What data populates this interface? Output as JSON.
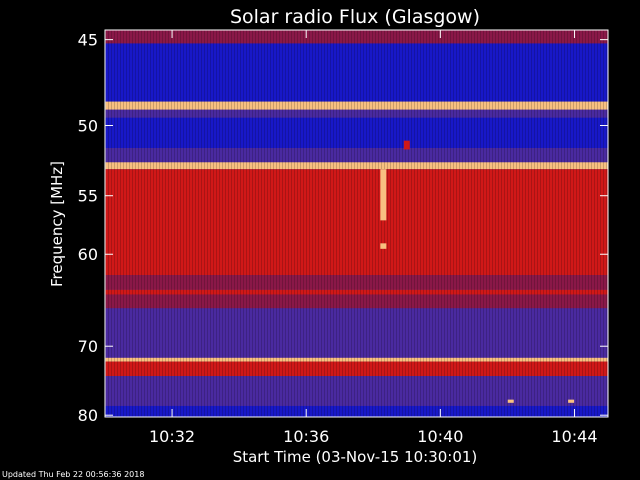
{
  "chart_data": {
    "type": "heatmap",
    "title": "Solar radio Flux (Glasgow)",
    "xlabel": "Start Time (03-Nov-15 10:30:01)",
    "ylabel": "Frequency [MHz]",
    "x_ticks": [
      "10:32",
      "10:36",
      "10:40",
      "10:44"
    ],
    "x_tick_minutes": [
      2,
      6,
      10,
      14
    ],
    "xlim_minutes": [
      0,
      15
    ],
    "y_ticks": [
      45,
      50,
      55,
      60,
      70,
      80
    ],
    "ylim": [
      44.5,
      80.3
    ],
    "y_scale": "reciprocal",
    "colors": {
      "background": "#000000",
      "axes": "#ffffff",
      "text": "#ffffff",
      "low": "#1818c8",
      "mid_low": "#4a2aa0",
      "mid": "#8a1848",
      "high": "#d01818",
      "peak": "#f8c080"
    },
    "bands": [
      {
        "from": 44.5,
        "to": 45.2,
        "level": "mid",
        "label": "top edge"
      },
      {
        "from": 45.2,
        "to": 48.5,
        "level": "low"
      },
      {
        "from": 48.5,
        "to": 49.0,
        "level": "peak"
      },
      {
        "from": 49.0,
        "to": 49.5,
        "level": "mid_low"
      },
      {
        "from": 49.5,
        "to": 51.5,
        "level": "low"
      },
      {
        "from": 51.5,
        "to": 52.5,
        "level": "mid_low"
      },
      {
        "from": 52.5,
        "to": 53.0,
        "level": "peak"
      },
      {
        "from": 53.0,
        "to": 62.0,
        "level": "high"
      },
      {
        "from": 62.0,
        "to": 63.5,
        "level": "mid"
      },
      {
        "from": 63.5,
        "to": 64.0,
        "level": "high"
      },
      {
        "from": 64.0,
        "to": 65.5,
        "level": "mid"
      },
      {
        "from": 65.5,
        "to": 71.5,
        "level": "mid_low"
      },
      {
        "from": 71.5,
        "to": 72.0,
        "level": "peak"
      },
      {
        "from": 72.0,
        "to": 74.0,
        "level": "high"
      },
      {
        "from": 74.0,
        "to": 78.5,
        "level": "mid_low"
      },
      {
        "from": 78.5,
        "to": 80.3,
        "level": "low"
      }
    ],
    "features": [
      {
        "t": 8.3,
        "f_from": 53.0,
        "f_to": 57.0,
        "level": "peak"
      },
      {
        "t": 8.3,
        "f_from": 59.0,
        "f_to": 59.5,
        "level": "peak"
      },
      {
        "t": 12.1,
        "f_from": 77.5,
        "f_to": 78.0,
        "level": "peak"
      },
      {
        "t": 13.9,
        "f_from": 77.5,
        "f_to": 78.0,
        "level": "peak"
      },
      {
        "t": 9.0,
        "f_from": 51.0,
        "f_to": 51.6,
        "level": "high"
      }
    ],
    "grid": false
  },
  "footer": {
    "updated_text": "Updated Thu Feb 22 00:56:36 2018"
  }
}
